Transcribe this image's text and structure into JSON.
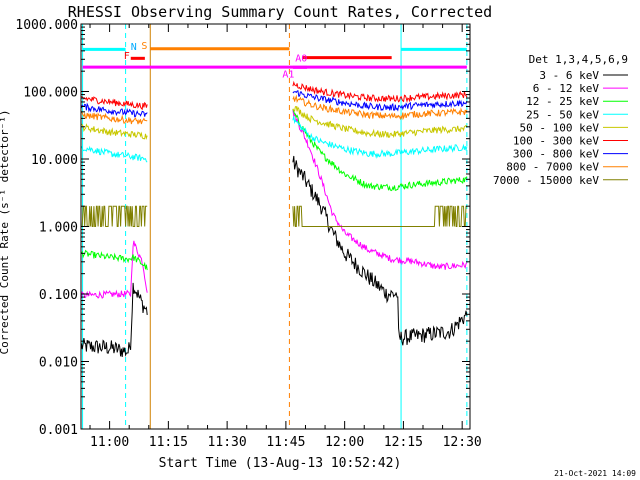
{
  "chart_data": {
    "type": "line",
    "title": "RHESSI Observing Summary Count Rates, Corrected",
    "ylabel": "Corrected Count Rate (s⁻¹ detector⁻¹)",
    "xlabel": "Start Time (13-Aug-13 10:52:42)",
    "stamp": "21-Oct-2021 14:09",
    "legend_title": "Det 1,3,4,5,6,9",
    "yscale": "log",
    "ylim": [
      0.001,
      1000
    ],
    "xlim": [
      10.8783,
      12.5333
    ],
    "y_ticks": [
      {
        "v": 1000,
        "label": "1000.000"
      },
      {
        "v": 100,
        "label": "100.000"
      },
      {
        "v": 10,
        "label": "10.000"
      },
      {
        "v": 1,
        "label": "1.000"
      },
      {
        "v": 0.1,
        "label": "0.100"
      },
      {
        "v": 0.01,
        "label": "0.010"
      },
      {
        "v": 0.001,
        "label": "0.001"
      }
    ],
    "x_ticks": [
      {
        "v": 11.0,
        "label": "11:00"
      },
      {
        "v": 11.25,
        "label": "11:15"
      },
      {
        "v": 11.5,
        "label": "11:30"
      },
      {
        "v": 11.75,
        "label": "11:45"
      },
      {
        "v": 12.0,
        "label": "12:00"
      },
      {
        "v": 12.25,
        "label": "12:15"
      },
      {
        "v": 12.5,
        "label": "12:30"
      }
    ],
    "series": [
      {
        "name": "3 - 6 keV",
        "color": "#000000",
        "seg1": [
          [
            10.88,
            0.017
          ],
          [
            11.0,
            0.016
          ],
          [
            11.08,
            0.014
          ],
          [
            11.09,
            0.02
          ],
          [
            11.1,
            0.14
          ],
          [
            11.14,
            0.07
          ],
          [
            11.16,
            0.055
          ]
        ],
        "seg2": [
          [
            11.78,
            9
          ],
          [
            11.83,
            5
          ],
          [
            11.9,
            2
          ],
          [
            11.95,
            0.8
          ],
          [
            12.0,
            0.4
          ],
          [
            12.1,
            0.18
          ],
          [
            12.18,
            0.1
          ],
          [
            12.225,
            0.1
          ],
          [
            12.23,
            0.022
          ],
          [
            12.35,
            0.025
          ],
          [
            12.45,
            0.028
          ],
          [
            12.52,
            0.05
          ]
        ]
      },
      {
        "name": "6 - 12 keV",
        "color": "#ff00ff",
        "seg1": [
          [
            10.88,
            0.095
          ],
          [
            11.05,
            0.1
          ],
          [
            11.09,
            0.1
          ],
          [
            11.1,
            0.6
          ],
          [
            11.14,
            0.3
          ],
          [
            11.16,
            0.11
          ]
        ],
        "seg2": [
          [
            11.78,
            50
          ],
          [
            11.85,
            15
          ],
          [
            11.9,
            5
          ],
          [
            11.95,
            1.5
          ],
          [
            12.0,
            0.8
          ],
          [
            12.1,
            0.45
          ],
          [
            12.2,
            0.33
          ],
          [
            12.3,
            0.3
          ],
          [
            12.4,
            0.25
          ],
          [
            12.52,
            0.27
          ]
        ]
      },
      {
        "name": "12 - 25 keV",
        "color": "#00ff00",
        "seg1": [
          [
            10.88,
            0.4
          ],
          [
            11.0,
            0.35
          ],
          [
            11.08,
            0.33
          ],
          [
            11.1,
            0.35
          ],
          [
            11.14,
            0.28
          ],
          [
            11.16,
            0.24
          ]
        ],
        "seg2": [
          [
            11.78,
            50
          ],
          [
            11.85,
            20
          ],
          [
            11.9,
            12
          ],
          [
            12.0,
            6
          ],
          [
            12.1,
            4
          ],
          [
            12.2,
            3.8
          ],
          [
            12.3,
            4.2
          ],
          [
            12.4,
            4.5
          ],
          [
            12.52,
            5
          ]
        ]
      },
      {
        "name": "25 - 50 keV",
        "color": "#00ffff",
        "seg1": [
          [
            10.88,
            15
          ],
          [
            11.0,
            12
          ],
          [
            11.16,
            10
          ]
        ],
        "seg2": [
          [
            11.78,
            40
          ],
          [
            11.85,
            22
          ],
          [
            11.9,
            18
          ],
          [
            12.0,
            14
          ],
          [
            12.1,
            12
          ],
          [
            12.2,
            12
          ],
          [
            12.3,
            13
          ],
          [
            12.4,
            14
          ],
          [
            12.52,
            15
          ]
        ]
      },
      {
        "name": "50 - 100 keV",
        "color": "#c8c800",
        "seg1": [
          [
            10.88,
            30
          ],
          [
            11.0,
            25
          ],
          [
            11.16,
            22
          ]
        ],
        "seg2": [
          [
            11.78,
            60
          ],
          [
            11.85,
            40
          ],
          [
            11.9,
            35
          ],
          [
            12.0,
            28
          ],
          [
            12.1,
            24
          ],
          [
            12.2,
            23
          ],
          [
            12.3,
            25
          ],
          [
            12.4,
            27
          ],
          [
            12.52,
            28
          ]
        ]
      },
      {
        "name": "100 - 300 keV",
        "color": "#ff0000",
        "seg1": [
          [
            10.88,
            80
          ],
          [
            11.0,
            70
          ],
          [
            11.16,
            60
          ]
        ],
        "seg2": [
          [
            11.78,
            130
          ],
          [
            11.85,
            110
          ],
          [
            11.9,
            100
          ],
          [
            12.0,
            88
          ],
          [
            12.1,
            80
          ],
          [
            12.2,
            78
          ],
          [
            12.3,
            82
          ],
          [
            12.4,
            85
          ],
          [
            12.52,
            90
          ]
        ]
      },
      {
        "name": "300 - 800 keV",
        "color": "#0000ff",
        "seg1": [
          [
            10.88,
            60
          ],
          [
            11.0,
            52
          ],
          [
            11.16,
            45
          ]
        ],
        "seg2": [
          [
            11.78,
            100
          ],
          [
            11.85,
            85
          ],
          [
            11.9,
            78
          ],
          [
            12.0,
            68
          ],
          [
            12.1,
            60
          ],
          [
            12.2,
            58
          ],
          [
            12.3,
            62
          ],
          [
            12.4,
            65
          ],
          [
            12.52,
            68
          ]
        ]
      },
      {
        "name": "800 - 7000 keV",
        "color": "#ff8000",
        "seg1": [
          [
            10.88,
            45
          ],
          [
            11.0,
            40
          ],
          [
            11.16,
            35
          ]
        ],
        "seg2": [
          [
            11.78,
            80
          ],
          [
            11.85,
            65
          ],
          [
            11.9,
            58
          ],
          [
            12.0,
            50
          ],
          [
            12.1,
            45
          ],
          [
            12.2,
            43
          ],
          [
            12.3,
            46
          ],
          [
            12.4,
            48
          ],
          [
            12.52,
            50
          ]
        ]
      },
      {
        "name": "7000 - 15000 keV",
        "color": "#808000",
        "seg1": [
          [
            10.88,
            1
          ],
          [
            11.16,
            1
          ]
        ],
        "seg2": [
          [
            11.78,
            1
          ],
          [
            12.52,
            1
          ]
        ]
      }
    ],
    "vlines": [
      {
        "x": 10.885,
        "color": "#00ffff",
        "dash": false
      },
      {
        "x": 11.068,
        "color": "#00ffff",
        "dash": true
      },
      {
        "x": 11.173,
        "color": "#d08000",
        "dash": false
      },
      {
        "x": 11.765,
        "color": "#ff8000",
        "dash": true
      },
      {
        "x": 12.24,
        "color": "#00ffff",
        "dash": false
      },
      {
        "x": 12.52,
        "color": "#00ffff",
        "dash": true
      }
    ],
    "bars": [
      {
        "x1": 10.885,
        "x2": 11.068,
        "y": 420,
        "color": "#00ffff",
        "label": "N",
        "lx": 11.09,
        "ly": 412,
        "lcolor": "#00aaff"
      },
      {
        "x1": 11.173,
        "x2": 11.765,
        "y": 430,
        "color": "#ff8000",
        "label": "S",
        "lx": 11.135,
        "ly": 425,
        "lcolor": "#ff8000"
      },
      {
        "x1": 11.09,
        "x2": 11.15,
        "y": 310,
        "color": "#ff0000",
        "label": "F",
        "lx": 11.06,
        "ly": 305,
        "lcolor": "#ff0000"
      },
      {
        "x1": 11.82,
        "x2": 12.2,
        "y": 318,
        "color": "#ff0000",
        "label": "A0",
        "lx": 11.79,
        "ly": 280,
        "lcolor": "#ff00ff"
      },
      {
        "x1": 11.78,
        "x2": 11.84,
        "y": 228,
        "color": "#ff00ff",
        "label": "A1",
        "lx": 11.735,
        "ly": 160,
        "lcolor": "#ff00ff"
      },
      {
        "x1": 12.24,
        "x2": 12.52,
        "y": 420,
        "color": "#00ffff",
        "label": "",
        "lx": 0,
        "ly": 0,
        "lcolor": "#00ffff"
      },
      {
        "x1": 10.885,
        "x2": 12.52,
        "y": 230,
        "color": "#ff00ff",
        "label": "",
        "lx": 0,
        "ly": 0,
        "lcolor": "#ff00ff"
      }
    ]
  }
}
